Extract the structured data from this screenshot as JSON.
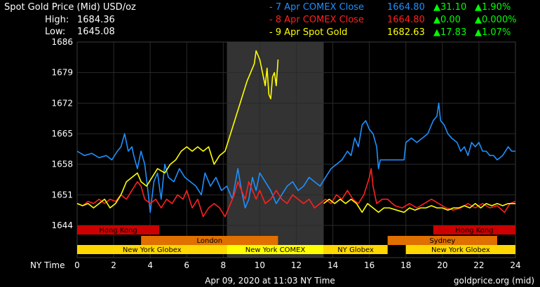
{
  "header": {
    "title": "Spot Gold Price (Mid) USD/oz",
    "high_label": "High:",
    "high_value": "1684.36",
    "low_label": "Low:",
    "low_value": "1645.08"
  },
  "legend": [
    {
      "label": "- 7 Apr COMEX Close",
      "price": "1664.80",
      "change": "▲31.10",
      "pct": "▲1.90%",
      "color": "#1e90ff",
      "change_color": "#00ff00"
    },
    {
      "label": "- 8 Apr COMEX Close",
      "price": "1664.80",
      "change": "▲0.00",
      "pct": "▲0.000%",
      "color": "#ff2020",
      "change_color": "#00ff00"
    },
    {
      "label": "- 9 Apr Spot Gold",
      "price": "1682.63",
      "change": "▲17.83",
      "pct": "▲1.07%",
      "color": "#ffff00",
      "change_color": "#00ff00"
    }
  ],
  "sessions": [
    {
      "name": "Hong Kong",
      "start": 0,
      "end": 4.5,
      "row": 0,
      "color": "#cc0000"
    },
    {
      "name": "Hong Kong",
      "start": 19.5,
      "end": 24,
      "row": 0,
      "color": "#cc0000"
    },
    {
      "name": "London",
      "start": 3.5,
      "end": 11,
      "row": 1,
      "color": "#e07000"
    },
    {
      "name": "Sydney",
      "start": 17,
      "end": 23,
      "row": 1,
      "color": "#e07000"
    },
    {
      "name": "New York Globex",
      "start": 0,
      "end": 8.2,
      "row": 2,
      "color": "#ffd700"
    },
    {
      "name": "New York COMEX",
      "start": 8.2,
      "end": 13.5,
      "row": 2,
      "color": "#ffff00"
    },
    {
      "name": "NY Globex",
      "start": 13.5,
      "end": 17,
      "row": 2,
      "color": "#ffd700"
    },
    {
      "name": "New York Globex",
      "start": 18,
      "end": 24,
      "row": 2,
      "color": "#ffd700"
    }
  ],
  "footer": {
    "xaxis_label": "NY Time",
    "timestamp": "Apr 09, 2020 at 11:03 NY Time",
    "source": "goldprice.org (mid)"
  },
  "chart_data": {
    "type": "line",
    "xlim": [
      0,
      24
    ],
    "ylim": [
      1644,
      1686
    ],
    "x_ticks": [
      0,
      2,
      4,
      6,
      8,
      10,
      12,
      14,
      16,
      18,
      20,
      22,
      24
    ],
    "y_ticks": [
      1644,
      1651,
      1658,
      1665,
      1672,
      1679,
      1686
    ],
    "shaded_region": [
      8.2,
      13.5
    ],
    "grid": true,
    "series": [
      {
        "name": "7 Apr",
        "color": "#1e90ff",
        "points": [
          [
            0,
            1661
          ],
          [
            0.4,
            1660
          ],
          [
            0.8,
            1660.5
          ],
          [
            1.2,
            1659.5
          ],
          [
            1.6,
            1660
          ],
          [
            1.9,
            1659
          ],
          [
            2.2,
            1661
          ],
          [
            2.4,
            1662
          ],
          [
            2.6,
            1665
          ],
          [
            2.8,
            1661
          ],
          [
            3.0,
            1662
          ],
          [
            3.1,
            1660
          ],
          [
            3.3,
            1657
          ],
          [
            3.5,
            1661
          ],
          [
            3.7,
            1658
          ],
          [
            3.9,
            1651
          ],
          [
            4.0,
            1647
          ],
          [
            4.2,
            1654
          ],
          [
            4.4,
            1656
          ],
          [
            4.6,
            1650
          ],
          [
            4.8,
            1658
          ],
          [
            5.0,
            1655
          ],
          [
            5.3,
            1654
          ],
          [
            5.6,
            1657
          ],
          [
            5.9,
            1655
          ],
          [
            6.2,
            1654
          ],
          [
            6.5,
            1653
          ],
          [
            6.8,
            1651
          ],
          [
            7.0,
            1656
          ],
          [
            7.3,
            1653
          ],
          [
            7.6,
            1655
          ],
          [
            7.9,
            1652
          ],
          [
            8.2,
            1653
          ],
          [
            8.5,
            1650
          ],
          [
            8.8,
            1657
          ],
          [
            9.0,
            1652
          ],
          [
            9.2,
            1648
          ],
          [
            9.4,
            1650
          ],
          [
            9.6,
            1655
          ],
          [
            9.8,
            1652
          ],
          [
            10.0,
            1656
          ],
          [
            10.3,
            1654
          ],
          [
            10.6,
            1652
          ],
          [
            10.9,
            1649
          ],
          [
            11.2,
            1651
          ],
          [
            11.5,
            1653
          ],
          [
            11.8,
            1654
          ],
          [
            12.1,
            1652
          ],
          [
            12.4,
            1653
          ],
          [
            12.7,
            1655
          ],
          [
            13.0,
            1654
          ],
          [
            13.3,
            1653
          ],
          [
            13.6,
            1655
          ],
          [
            13.9,
            1657
          ],
          [
            14.2,
            1658
          ],
          [
            14.5,
            1659
          ],
          [
            14.8,
            1661
          ],
          [
            15.0,
            1660
          ],
          [
            15.2,
            1664
          ],
          [
            15.4,
            1662
          ],
          [
            15.6,
            1667
          ],
          [
            15.8,
            1668
          ],
          [
            16.0,
            1666
          ],
          [
            16.2,
            1665
          ],
          [
            16.4,
            1662
          ],
          [
            16.5,
            1657
          ],
          [
            16.6,
            1659
          ],
          [
            16.8,
            1659
          ],
          [
            17.2,
            1659
          ],
          [
            17.6,
            1659
          ],
          [
            17.9,
            1659
          ],
          [
            18.0,
            1663
          ],
          [
            18.3,
            1664
          ],
          [
            18.6,
            1663
          ],
          [
            18.9,
            1664
          ],
          [
            19.2,
            1665
          ],
          [
            19.5,
            1668
          ],
          [
            19.7,
            1669
          ],
          [
            19.8,
            1672
          ],
          [
            19.9,
            1668
          ],
          [
            20.1,
            1667
          ],
          [
            20.3,
            1665
          ],
          [
            20.5,
            1664
          ],
          [
            20.8,
            1663
          ],
          [
            21.0,
            1661
          ],
          [
            21.2,
            1662
          ],
          [
            21.4,
            1660
          ],
          [
            21.6,
            1663
          ],
          [
            21.8,
            1662
          ],
          [
            22.0,
            1663
          ],
          [
            22.2,
            1661
          ],
          [
            22.4,
            1661
          ],
          [
            22.6,
            1660
          ],
          [
            22.8,
            1660
          ],
          [
            23.0,
            1659
          ],
          [
            23.3,
            1660
          ],
          [
            23.6,
            1662
          ],
          [
            23.8,
            1661
          ],
          [
            24,
            1661
          ]
        ]
      },
      {
        "name": "8 Apr",
        "color": "#ff2020",
        "points": [
          [
            0,
            1649
          ],
          [
            0.3,
            1648.5
          ],
          [
            0.6,
            1649.5
          ],
          [
            0.9,
            1649
          ],
          [
            1.2,
            1650
          ],
          [
            1.5,
            1649
          ],
          [
            1.8,
            1650
          ],
          [
            2.1,
            1649.5
          ],
          [
            2.4,
            1651
          ],
          [
            2.7,
            1650
          ],
          [
            3.0,
            1652
          ],
          [
            3.3,
            1654
          ],
          [
            3.5,
            1653
          ],
          [
            3.7,
            1650
          ],
          [
            4.0,
            1649
          ],
          [
            4.3,
            1650
          ],
          [
            4.6,
            1648
          ],
          [
            4.9,
            1650
          ],
          [
            5.2,
            1649
          ],
          [
            5.5,
            1651
          ],
          [
            5.8,
            1650
          ],
          [
            6.0,
            1652
          ],
          [
            6.3,
            1648
          ],
          [
            6.6,
            1650
          ],
          [
            6.9,
            1646
          ],
          [
            7.2,
            1648
          ],
          [
            7.5,
            1649
          ],
          [
            7.8,
            1648
          ],
          [
            8.1,
            1646
          ],
          [
            8.4,
            1649
          ],
          [
            8.6,
            1651
          ],
          [
            8.8,
            1654
          ],
          [
            9.0,
            1652
          ],
          [
            9.2,
            1650
          ],
          [
            9.4,
            1654
          ],
          [
            9.6,
            1652
          ],
          [
            9.8,
            1650
          ],
          [
            10.0,
            1652
          ],
          [
            10.3,
            1649
          ],
          [
            10.6,
            1650
          ],
          [
            10.9,
            1652
          ],
          [
            11.2,
            1650
          ],
          [
            11.5,
            1649
          ],
          [
            11.8,
            1651
          ],
          [
            12.1,
            1650
          ],
          [
            12.4,
            1649
          ],
          [
            12.7,
            1650
          ],
          [
            13.0,
            1648
          ],
          [
            13.3,
            1649
          ],
          [
            13.6,
            1650
          ],
          [
            13.9,
            1649
          ],
          [
            14.2,
            1651
          ],
          [
            14.5,
            1650
          ],
          [
            14.8,
            1652
          ],
          [
            15.1,
            1650
          ],
          [
            15.4,
            1649
          ],
          [
            15.7,
            1651
          ],
          [
            16.0,
            1655
          ],
          [
            16.1,
            1657
          ],
          [
            16.2,
            1653
          ],
          [
            16.4,
            1649
          ],
          [
            16.7,
            1650
          ],
          [
            17.0,
            1650
          ],
          [
            17.4,
            1648.5
          ],
          [
            17.8,
            1648
          ],
          [
            18.2,
            1649
          ],
          [
            18.6,
            1648
          ],
          [
            19.0,
            1649
          ],
          [
            19.4,
            1650
          ],
          [
            19.8,
            1649
          ],
          [
            20.2,
            1648
          ],
          [
            20.6,
            1647.5
          ],
          [
            21.0,
            1648
          ],
          [
            21.4,
            1649
          ],
          [
            21.8,
            1648
          ],
          [
            22.2,
            1649
          ],
          [
            22.6,
            1648
          ],
          [
            23.0,
            1648.5
          ],
          [
            23.4,
            1647
          ],
          [
            23.7,
            1649
          ],
          [
            24,
            1649.5
          ]
        ]
      },
      {
        "name": "9 Apr",
        "color": "#ffff00",
        "points": [
          [
            0,
            1649
          ],
          [
            0.3,
            1648.5
          ],
          [
            0.6,
            1649
          ],
          [
            0.9,
            1648
          ],
          [
            1.2,
            1649
          ],
          [
            1.5,
            1650
          ],
          [
            1.8,
            1648
          ],
          [
            2.1,
            1649
          ],
          [
            2.4,
            1651
          ],
          [
            2.7,
            1654
          ],
          [
            3.0,
            1655
          ],
          [
            3.3,
            1656
          ],
          [
            3.5,
            1654
          ],
          [
            3.8,
            1653
          ],
          [
            4.1,
            1655
          ],
          [
            4.4,
            1657
          ],
          [
            4.8,
            1656
          ],
          [
            5.1,
            1658
          ],
          [
            5.4,
            1659
          ],
          [
            5.7,
            1661
          ],
          [
            6.0,
            1662
          ],
          [
            6.3,
            1661
          ],
          [
            6.6,
            1662
          ],
          [
            6.9,
            1661
          ],
          [
            7.2,
            1662
          ],
          [
            7.5,
            1658
          ],
          [
            7.8,
            1660
          ],
          [
            8.1,
            1661
          ],
          [
            8.4,
            1665
          ],
          [
            8.7,
            1669
          ],
          [
            9.0,
            1673
          ],
          [
            9.3,
            1677
          ],
          [
            9.5,
            1679
          ],
          [
            9.7,
            1681
          ],
          [
            9.8,
            1684
          ],
          [
            10.0,
            1682
          ],
          [
            10.2,
            1678
          ],
          [
            10.3,
            1676
          ],
          [
            10.4,
            1680
          ],
          [
            10.5,
            1674
          ],
          [
            10.6,
            1673
          ],
          [
            10.7,
            1678
          ],
          [
            10.8,
            1679
          ],
          [
            10.9,
            1676
          ],
          [
            11.0,
            1682
          ]
        ]
      },
      {
        "name": "9 Apr (prior day trace)",
        "color": "#ffff00",
        "points": [
          [
            13.5,
            1649
          ],
          [
            13.8,
            1650
          ],
          [
            14.1,
            1649
          ],
          [
            14.4,
            1650
          ],
          [
            14.7,
            1649
          ],
          [
            15.0,
            1650
          ],
          [
            15.3,
            1649
          ],
          [
            15.6,
            1647
          ],
          [
            15.9,
            1649
          ],
          [
            16.2,
            1648
          ],
          [
            16.5,
            1647
          ],
          [
            16.8,
            1648
          ],
          [
            17.1,
            1648
          ],
          [
            17.5,
            1647.5
          ],
          [
            17.9,
            1647
          ],
          [
            18.2,
            1648
          ],
          [
            18.5,
            1647.5
          ],
          [
            18.8,
            1648
          ],
          [
            19.1,
            1648
          ],
          [
            19.4,
            1648.5
          ],
          [
            19.7,
            1648
          ],
          [
            20.0,
            1648
          ],
          [
            20.3,
            1647.5
          ],
          [
            20.6,
            1648
          ],
          [
            20.9,
            1648
          ],
          [
            21.2,
            1648.5
          ],
          [
            21.5,
            1648
          ],
          [
            21.8,
            1649
          ],
          [
            22.1,
            1648
          ],
          [
            22.4,
            1649
          ],
          [
            22.7,
            1648.5
          ],
          [
            23.0,
            1649
          ],
          [
            23.3,
            1648.5
          ],
          [
            23.6,
            1649
          ],
          [
            24,
            1649
          ]
        ]
      }
    ]
  }
}
